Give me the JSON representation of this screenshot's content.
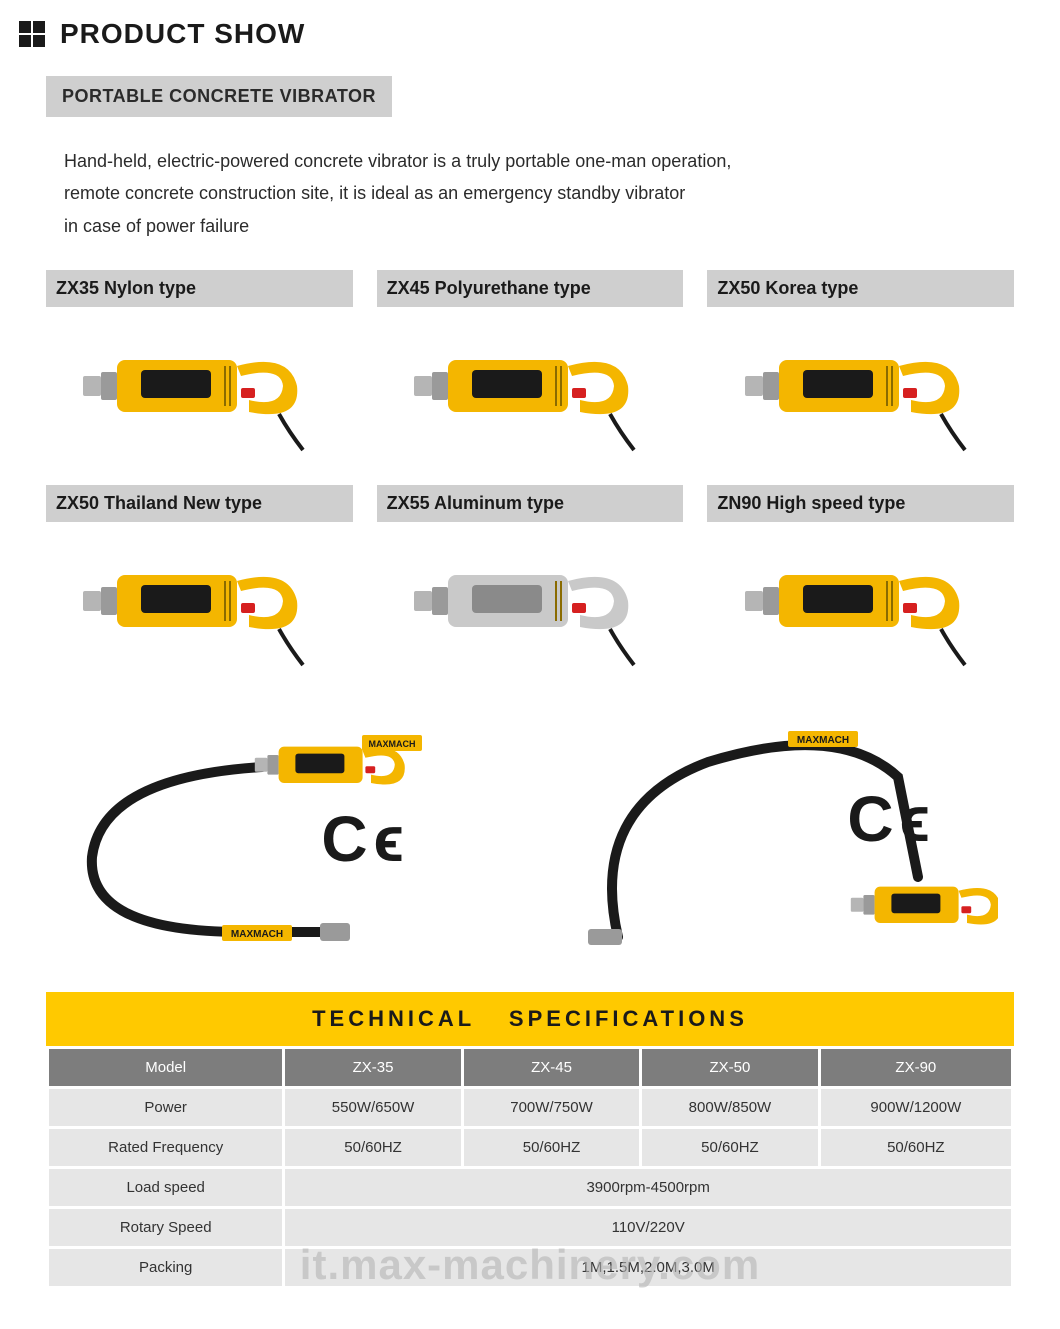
{
  "header": {
    "title": "PRODUCT SHOW"
  },
  "section_label": "PORTABLE CONCRETE VIBRATOR",
  "intro_lines": [
    "Hand-held, electric-powered concrete vibrator is a truly portable one-man operation,",
    "remote concrete construction site, it is ideal as an emergency standby vibrator",
    "in case of power failure"
  ],
  "products": [
    {
      "label": "ZX35 Nylon type",
      "body_color": "#f4b600",
      "silver": false
    },
    {
      "label": "ZX45 Polyurethane type",
      "body_color": "#f4b600",
      "silver": false
    },
    {
      "label": "ZX50 Korea type",
      "body_color": "#f4b600",
      "silver": false
    },
    {
      "label": "ZX50 Thailand New type",
      "body_color": "#f4b600",
      "silver": false
    },
    {
      "label": "ZX55 Aluminum type",
      "body_color": "#c9c9c9",
      "silver": true
    },
    {
      "label": "ZN90 High speed type",
      "body_color": "#f4b600",
      "silver": false
    }
  ],
  "hose": {
    "ce_text": "C ϵ",
    "tool_color": "#f4b600",
    "hose_color": "#1a1a1a",
    "brand_text": "MAXMACH",
    "brand_bg": "#f4b600"
  },
  "spec": {
    "title": "TECHNICAL    SPECIFICATIONS",
    "band_bg": "#ffc900",
    "header_bg": "#7d7d7d",
    "header_fg": "#ffffff",
    "row_bg": "#e6e6e6",
    "columns": [
      "Model",
      "ZX-35",
      "ZX-45",
      "ZX-50",
      "ZX-90"
    ],
    "rows": [
      {
        "label": "Power",
        "cells": [
          "550W/650W",
          "700W/750W",
          "800W/850W",
          "900W/1200W"
        ]
      },
      {
        "label": "Rated Frequency",
        "cells": [
          "50/60HZ",
          "50/60HZ",
          "50/60HZ",
          "50/60HZ"
        ]
      },
      {
        "label": "Load speed",
        "span": "3900rpm-4500rpm"
      },
      {
        "label": "Rotary Speed",
        "span": "110V/220V"
      },
      {
        "label": "Packing",
        "span": "1M,1.5M,2.0M,3.0M"
      }
    ]
  },
  "watermark": "it.max-machinery.com",
  "colors": {
    "page_bg": "#ffffff",
    "label_bg": "#cfcfcf",
    "text": "#1a1a1a"
  }
}
